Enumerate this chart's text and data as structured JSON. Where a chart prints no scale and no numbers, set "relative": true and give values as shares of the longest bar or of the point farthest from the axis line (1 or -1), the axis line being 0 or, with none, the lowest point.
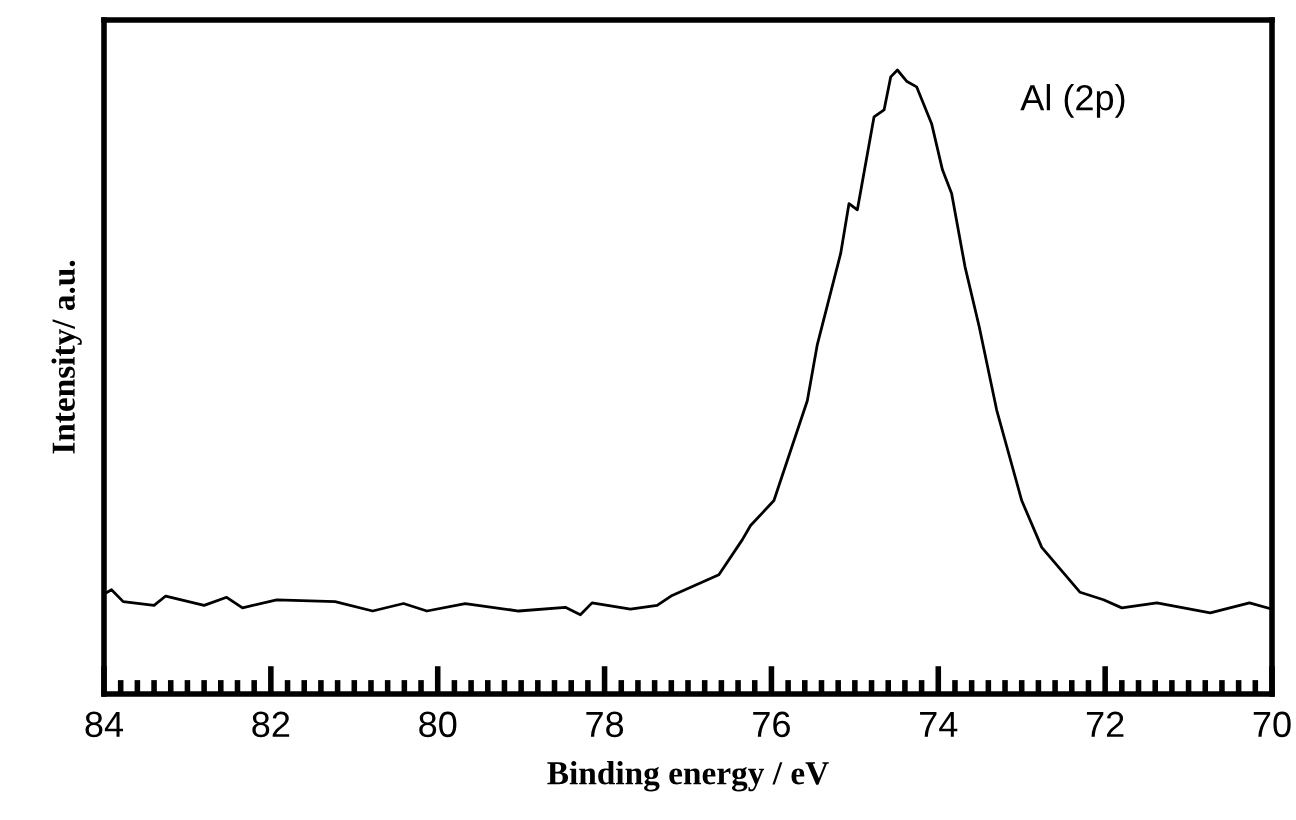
{
  "chart_data": {
    "type": "line",
    "relative": true,
    "xlabel": "Binding energy / eV",
    "ylabel": "Intensity/ a.u.",
    "annotations": [
      "Al (2p)"
    ],
    "xlim": [
      84,
      70
    ],
    "xticks": [
      84,
      82,
      80,
      78,
      76,
      74,
      72,
      70,
      {
        "value": 83.8,
        "label": null
      },
      {
        "value": 83.6,
        "label": null
      },
      {
        "value": 83.4,
        "label": null
      },
      {
        "value": 83.2,
        "label": null
      },
      {
        "value": 83.0,
        "label": null
      },
      {
        "value": 82.8,
        "label": null
      },
      {
        "value": 82.6,
        "label": null
      },
      {
        "value": 82.4,
        "label": null
      },
      {
        "value": 82.2,
        "label": null
      },
      {
        "value": 81.8,
        "label": null
      },
      {
        "value": 81.6,
        "label": null
      },
      {
        "value": 81.4,
        "label": null
      },
      {
        "value": 81.2,
        "label": null
      },
      {
        "value": 81.0,
        "label": null
      },
      {
        "value": 80.8,
        "label": null
      },
      {
        "value": 80.6,
        "label": null
      },
      {
        "value": 80.4,
        "label": null
      },
      {
        "value": 80.2,
        "label": null
      },
      {
        "value": 79.8,
        "label": null
      },
      {
        "value": 79.6,
        "label": null
      },
      {
        "value": 79.4,
        "label": null
      },
      {
        "value": 79.2,
        "label": null
      },
      {
        "value": 79.0,
        "label": null
      },
      {
        "value": 78.8,
        "label": null
      },
      {
        "value": 78.6,
        "label": null
      },
      {
        "value": 78.4,
        "label": null
      },
      {
        "value": 78.2,
        "label": null
      },
      {
        "value": 77.8,
        "label": null
      },
      {
        "value": 77.6,
        "label": null
      },
      {
        "value": 77.4,
        "label": null
      },
      {
        "value": 77.2,
        "label": null
      },
      {
        "value": 77.0,
        "label": null
      },
      {
        "value": 76.8,
        "label": null
      },
      {
        "value": 76.6,
        "label": null
      },
      {
        "value": 76.4,
        "label": null
      },
      {
        "value": 76.2,
        "label": null
      },
      {
        "value": 75.8,
        "label": null
      },
      {
        "value": 75.6,
        "label": null
      },
      {
        "value": 75.4,
        "label": null
      },
      {
        "value": 75.2,
        "label": null
      },
      {
        "value": 75.0,
        "label": null
      },
      {
        "value": 74.8,
        "label": null
      },
      {
        "value": 74.6,
        "label": null
      },
      {
        "value": 74.4,
        "label": null
      },
      {
        "value": 74.2,
        "label": null
      },
      {
        "value": 73.8,
        "label": null
      },
      {
        "value": 73.6,
        "label": null
      },
      {
        "value": 73.4,
        "label": null
      },
      {
        "value": 73.2,
        "label": null
      },
      {
        "value": 73.0,
        "label": null
      },
      {
        "value": 72.8,
        "label": null
      },
      {
        "value": 72.6,
        "label": null
      },
      {
        "value": 72.4,
        "label": null
      },
      {
        "value": 72.2,
        "label": null
      },
      {
        "value": 71.8,
        "label": null
      },
      {
        "value": 71.6,
        "label": null
      },
      {
        "value": 71.4,
        "label": null
      },
      {
        "value": 71.2,
        "label": null
      },
      {
        "value": 71.0,
        "label": null
      },
      {
        "value": 70.8,
        "label": null
      },
      {
        "value": 70.6,
        "label": null
      },
      {
        "value": 70.4,
        "label": null
      },
      {
        "value": 70.2,
        "label": null
      }
    ],
    "grid": false,
    "legend": false,
    "marker": "none",
    "line_style": "solid",
    "series": [
      {
        "color": "#000000",
        "x": [
          84.0,
          83.91,
          83.77,
          83.4,
          83.26,
          82.8,
          82.53,
          82.34,
          81.93,
          81.23,
          80.78,
          80.41,
          80.13,
          79.67,
          79.03,
          78.47,
          78.29,
          78.15,
          77.69,
          77.37,
          77.19,
          76.63,
          76.35,
          76.25,
          75.97,
          75.57,
          75.45,
          75.17,
          75.07,
          74.97,
          74.77,
          74.65,
          74.57,
          74.49,
          74.38,
          74.26,
          74.08,
          73.95,
          73.84,
          73.68,
          73.51,
          73.3,
          73.0,
          72.76,
          72.3,
          72.02,
          71.8,
          71.38,
          70.74,
          70.27,
          70.0
        ],
        "values": [
          0.16,
          0.167,
          0.148,
          0.142,
          0.157,
          0.142,
          0.155,
          0.138,
          0.151,
          0.148,
          0.133,
          0.145,
          0.133,
          0.145,
          0.133,
          0.139,
          0.127,
          0.146,
          0.136,
          0.142,
          0.158,
          0.191,
          0.247,
          0.27,
          0.31,
          0.47,
          0.56,
          0.706,
          0.786,
          0.776,
          0.925,
          0.936,
          0.989,
          1.0,
          0.982,
          0.973,
          0.914,
          0.84,
          0.802,
          0.685,
          0.589,
          0.455,
          0.31,
          0.235,
          0.163,
          0.151,
          0.138,
          0.146,
          0.13,
          0.146,
          0.136
        ]
      }
    ]
  }
}
